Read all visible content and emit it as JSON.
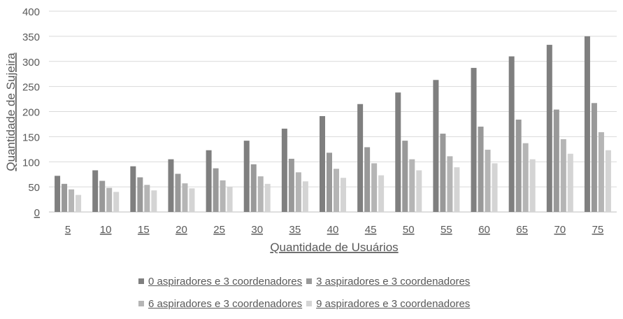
{
  "chart_data": {
    "type": "bar",
    "title": "",
    "xlabel": "Quantidade de Usuários",
    "ylabel": "Quantidade de Sujeira",
    "categories": [
      "5",
      "10",
      "15",
      "20",
      "25",
      "30",
      "35",
      "40",
      "45",
      "50",
      "55",
      "60",
      "65",
      "70",
      "75"
    ],
    "ylim": [
      0,
      400
    ],
    "yticks": [
      "0",
      "50",
      "100",
      "150",
      "200",
      "250",
      "300",
      "350",
      "400"
    ],
    "grid": true,
    "legend_position": "bottom",
    "series": [
      {
        "name": "0 aspiradores e 3 coordenadores",
        "color": "#7f7f7f",
        "values": [
          72,
          83,
          91,
          105,
          123,
          142,
          166,
          191,
          215,
          238,
          263,
          287,
          310,
          333,
          350
        ]
      },
      {
        "name": "3 aspiradores e 3 coordenadores",
        "color": "#999999",
        "values": [
          56,
          62,
          69,
          76,
          87,
          95,
          106,
          118,
          129,
          142,
          156,
          170,
          184,
          204,
          217
        ]
      },
      {
        "name": "6 aspiradores e 3 coordenadores",
        "color": "#b5b5b5",
        "values": [
          45,
          48,
          54,
          57,
          63,
          71,
          79,
          86,
          97,
          105,
          111,
          124,
          137,
          145,
          159
        ]
      },
      {
        "name": "9 aspiradores e 3 coordenadores",
        "color": "#d4d4d4",
        "values": [
          34,
          40,
          43,
          47,
          50,
          56,
          61,
          68,
          73,
          83,
          89,
          97,
          105,
          116,
          123
        ]
      }
    ]
  }
}
